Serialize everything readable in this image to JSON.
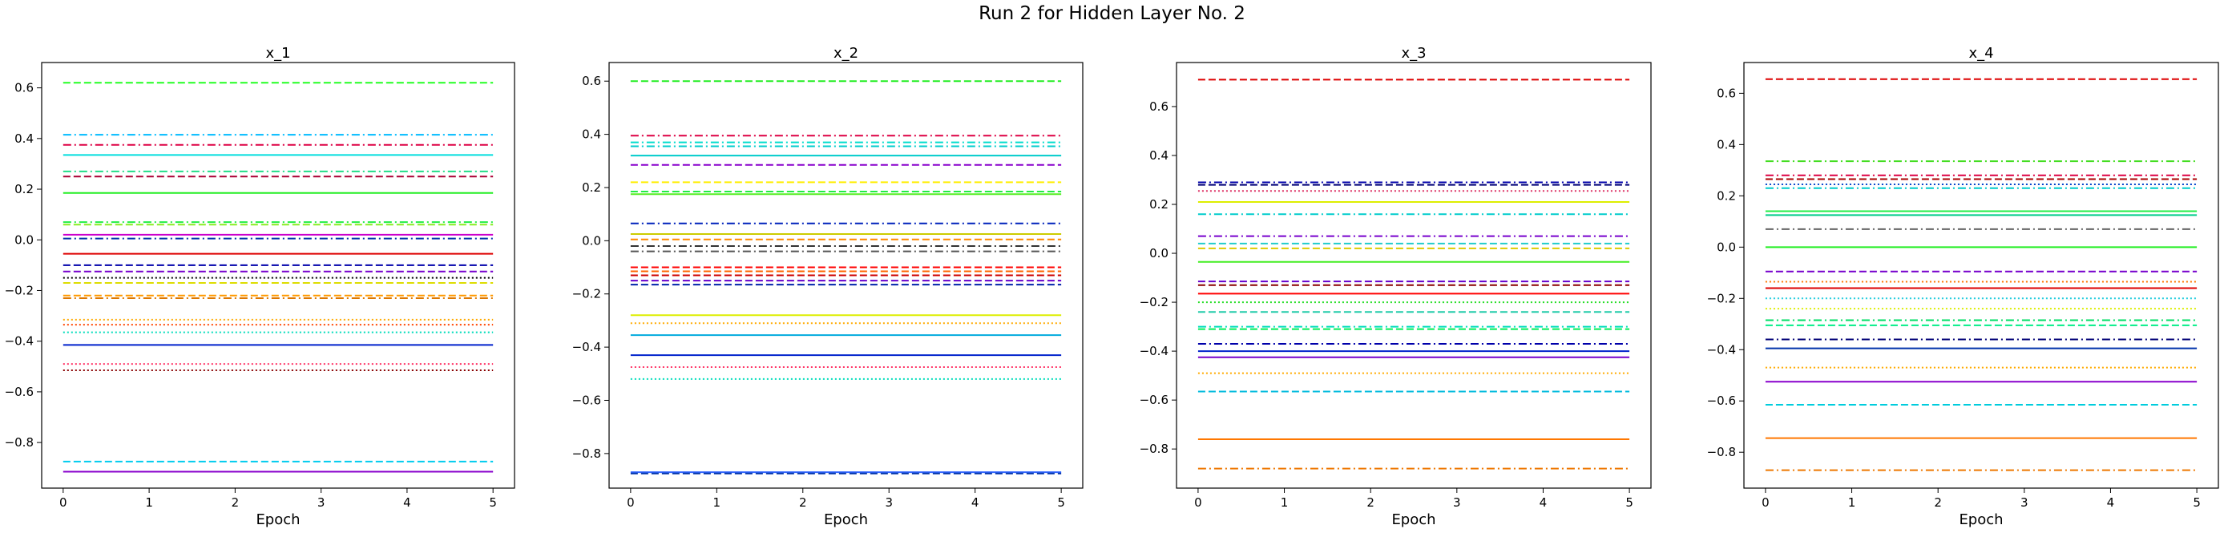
{
  "figure": {
    "suptitle": "Run 2 for Hidden Layer No. 2"
  },
  "chart_data": [
    {
      "type": "line",
      "title": "x_1",
      "xlabel": "Epoch",
      "ylabel": "",
      "xlim": [
        -0.25,
        5.25
      ],
      "ylim": [
        -0.98,
        0.7
      ],
      "xticks": [
        0,
        1,
        2,
        3,
        4,
        5
      ],
      "yticks": [
        -0.8,
        -0.6,
        -0.4,
        -0.2,
        0.0,
        0.2,
        0.4,
        0.6
      ],
      "ytick_labels": [
        "−0.8",
        "−0.6",
        "−0.4",
        "−0.2",
        "0.0",
        "0.2",
        "0.4",
        "0.6"
      ],
      "x": [
        0,
        5
      ],
      "grid": false,
      "series": [
        {
          "value": 0.62,
          "color": "#22ff22",
          "style": "dashed"
        },
        {
          "value": 0.415,
          "color": "#00bbff",
          "style": "dashdot"
        },
        {
          "value": 0.375,
          "color": "#dd0044",
          "style": "dashdot"
        },
        {
          "value": 0.335,
          "color": "#00dddd",
          "style": "solid"
        },
        {
          "value": 0.27,
          "color": "#22dd88",
          "style": "dashdot"
        },
        {
          "value": 0.25,
          "color": "#aa0033",
          "style": "dashed"
        },
        {
          "value": 0.185,
          "color": "#22ee22",
          "style": "solid"
        },
        {
          "value": 0.07,
          "color": "#22ee44",
          "style": "dashdot"
        },
        {
          "value": 0.06,
          "color": "#88ee22",
          "style": "dashed"
        },
        {
          "value": 0.02,
          "color": "#cc00cc",
          "style": "solid"
        },
        {
          "value": 0.005,
          "color": "#0033aa",
          "style": "dashdot"
        },
        {
          "value": -0.055,
          "color": "#dd0000",
          "style": "solid"
        },
        {
          "value": -0.1,
          "color": "#0000aa",
          "style": "dashed"
        },
        {
          "value": -0.125,
          "color": "#7700cc",
          "style": "dashed"
        },
        {
          "value": -0.15,
          "color": "#000000",
          "style": "dotted"
        },
        {
          "value": -0.17,
          "color": "#dddd00",
          "style": "dashed"
        },
        {
          "value": -0.22,
          "color": "#ff9900",
          "style": "dashed"
        },
        {
          "value": -0.23,
          "color": "#dd7700",
          "style": "dashdot"
        },
        {
          "value": -0.315,
          "color": "#ffaa00",
          "style": "dotted"
        },
        {
          "value": -0.335,
          "color": "#ff4400",
          "style": "dotted"
        },
        {
          "value": -0.365,
          "color": "#00ddbb",
          "style": "dotted"
        },
        {
          "value": -0.415,
          "color": "#0022cc",
          "style": "solid"
        },
        {
          "value": -0.49,
          "color": "#ff3366",
          "style": "dotted"
        },
        {
          "value": -0.515,
          "color": "#880000",
          "style": "dotted"
        },
        {
          "value": -0.875,
          "color": "#00ccee",
          "style": "dashed"
        },
        {
          "value": -0.915,
          "color": "#8800cc",
          "style": "solid"
        }
      ]
    },
    {
      "type": "line",
      "title": "x_2",
      "xlabel": "Epoch",
      "ylabel": "",
      "xlim": [
        -0.25,
        5.25
      ],
      "ylim": [
        -0.93,
        0.67
      ],
      "xticks": [
        0,
        1,
        2,
        3,
        4,
        5
      ],
      "yticks": [
        -0.8,
        -0.6,
        -0.4,
        -0.2,
        0.0,
        0.2,
        0.4,
        0.6
      ],
      "ytick_labels": [
        "−0.8",
        "−0.6",
        "−0.4",
        "−0.2",
        "0.0",
        "0.2",
        "0.4",
        "0.6"
      ],
      "x": [
        0,
        5
      ],
      "grid": false,
      "series": [
        {
          "value": 0.6,
          "color": "#22ee22",
          "style": "dashed"
        },
        {
          "value": 0.395,
          "color": "#dd0044",
          "style": "dashdot"
        },
        {
          "value": 0.37,
          "color": "#00ddcc",
          "style": "dashdot"
        },
        {
          "value": 0.355,
          "color": "#00cccc",
          "style": "dashdot"
        },
        {
          "value": 0.32,
          "color": "#00cccc",
          "style": "solid"
        },
        {
          "value": 0.285,
          "color": "#8800cc",
          "style": "dashed"
        },
        {
          "value": 0.22,
          "color": "#ffee00",
          "style": "dashed"
        },
        {
          "value": 0.185,
          "color": "#22ee44",
          "style": "dashed"
        },
        {
          "value": 0.175,
          "color": "#55ee22",
          "style": "solid"
        },
        {
          "value": 0.065,
          "color": "#0022bb",
          "style": "dashdot"
        },
        {
          "value": 0.025,
          "color": "#cccc00",
          "style": "solid"
        },
        {
          "value": 0.005,
          "color": "#ff8800",
          "style": "dashed"
        },
        {
          "value": -0.02,
          "color": "#333333",
          "style": "dashdot"
        },
        {
          "value": -0.04,
          "color": "#555555",
          "style": "dashdot"
        },
        {
          "value": -0.1,
          "color": "#ff0000",
          "style": "dashed"
        },
        {
          "value": -0.115,
          "color": "#ff6600",
          "style": "dashed"
        },
        {
          "value": -0.13,
          "color": "#cc0000",
          "style": "dashed"
        },
        {
          "value": -0.15,
          "color": "#6600cc",
          "style": "dashed"
        },
        {
          "value": -0.165,
          "color": "#0022aa",
          "style": "dashed"
        },
        {
          "value": -0.28,
          "color": "#ddee00",
          "style": "solid"
        },
        {
          "value": -0.31,
          "color": "#ffaa00",
          "style": "dotted"
        },
        {
          "value": -0.355,
          "color": "#00aadd",
          "style": "solid"
        },
        {
          "value": -0.43,
          "color": "#0022cc",
          "style": "solid"
        },
        {
          "value": -0.475,
          "color": "#ff3366",
          "style": "dotted"
        },
        {
          "value": -0.52,
          "color": "#00ddbb",
          "style": "dotted"
        },
        {
          "value": -0.87,
          "color": "#3366ff",
          "style": "solid"
        },
        {
          "value": -0.875,
          "color": "#0033aa",
          "style": "dashed"
        }
      ]
    },
    {
      "type": "line",
      "title": "x_3",
      "xlabel": "Epoch",
      "ylabel": "",
      "xlim": [
        -0.25,
        5.25
      ],
      "ylim": [
        -0.96,
        0.78
      ],
      "xticks": [
        0,
        1,
        2,
        3,
        4,
        5
      ],
      "yticks": [
        -0.8,
        -0.6,
        -0.4,
        -0.2,
        0.0,
        0.2,
        0.4,
        0.6
      ],
      "ytick_labels": [
        "−0.8",
        "−0.6",
        "−0.4",
        "−0.2",
        "0.0",
        "0.2",
        "0.4",
        "0.6"
      ],
      "x": [
        0,
        5
      ],
      "grid": false,
      "series": [
        {
          "value": 0.71,
          "color": "#dd0000",
          "style": "dashed"
        },
        {
          "value": 0.29,
          "color": "#0000aa",
          "style": "dashdot"
        },
        {
          "value": 0.28,
          "color": "#000077",
          "style": "dashed"
        },
        {
          "value": 0.255,
          "color": "#dd3366",
          "style": "dotted"
        },
        {
          "value": 0.21,
          "color": "#ddee00",
          "style": "solid"
        },
        {
          "value": 0.16,
          "color": "#00cccc",
          "style": "dashdot"
        },
        {
          "value": 0.07,
          "color": "#7700cc",
          "style": "dashdot"
        },
        {
          "value": 0.04,
          "color": "#22cccc",
          "style": "dashed"
        },
        {
          "value": 0.02,
          "color": "#ddcc00",
          "style": "dashed"
        },
        {
          "value": -0.035,
          "color": "#44ee22",
          "style": "solid"
        },
        {
          "value": -0.115,
          "color": "#6600cc",
          "style": "dashed"
        },
        {
          "value": -0.13,
          "color": "#880000",
          "style": "dashed"
        },
        {
          "value": -0.165,
          "color": "#ff0000",
          "style": "solid"
        },
        {
          "value": -0.2,
          "color": "#22dd22",
          "style": "dotted"
        },
        {
          "value": -0.24,
          "color": "#22ccaa",
          "style": "dashed"
        },
        {
          "value": -0.3,
          "color": "#00ddbb",
          "style": "dashdot"
        },
        {
          "value": -0.31,
          "color": "#00ee55",
          "style": "dashed"
        },
        {
          "value": -0.37,
          "color": "#0000aa",
          "style": "dashdot"
        },
        {
          "value": -0.4,
          "color": "#0022cc",
          "style": "solid"
        },
        {
          "value": -0.425,
          "color": "#7700cc",
          "style": "solid"
        },
        {
          "value": -0.49,
          "color": "#ffaa00",
          "style": "dotted"
        },
        {
          "value": -0.565,
          "color": "#00bbdd",
          "style": "dashed"
        },
        {
          "value": -0.76,
          "color": "#ff7700",
          "style": "solid"
        },
        {
          "value": -0.88,
          "color": "#ee7700",
          "style": "dashdot"
        }
      ]
    },
    {
      "type": "line",
      "title": "x_4",
      "xlabel": "Epoch",
      "ylabel": "",
      "xlim": [
        -0.25,
        5.25
      ],
      "ylim": [
        -0.94,
        0.72
      ],
      "xticks": [
        0,
        1,
        2,
        3,
        4,
        5
      ],
      "yticks": [
        -0.8,
        -0.6,
        -0.4,
        -0.2,
        0.0,
        0.2,
        0.4,
        0.6
      ],
      "ytick_labels": [
        "−0.8",
        "−0.6",
        "−0.4",
        "−0.2",
        "0.0",
        "0.2",
        "0.4",
        "0.6"
      ],
      "x": [
        0,
        5
      ],
      "grid": false,
      "series": [
        {
          "value": 0.655,
          "color": "#dd0000",
          "style": "dashed"
        },
        {
          "value": 0.335,
          "color": "#44dd22",
          "style": "dashdot"
        },
        {
          "value": 0.28,
          "color": "#dd0044",
          "style": "dashdot"
        },
        {
          "value": 0.265,
          "color": "#aa0000",
          "style": "dashed"
        },
        {
          "value": 0.245,
          "color": "#0044cc",
          "style": "dotted"
        },
        {
          "value": 0.23,
          "color": "#00cccc",
          "style": "dashdot"
        },
        {
          "value": 0.14,
          "color": "#22ee44",
          "style": "solid"
        },
        {
          "value": 0.125,
          "color": "#00cc88",
          "style": "solid"
        },
        {
          "value": 0.07,
          "color": "#666666",
          "style": "dashdot"
        },
        {
          "value": 0.0,
          "color": "#22ee22",
          "style": "solid"
        },
        {
          "value": -0.095,
          "color": "#7700cc",
          "style": "dashed"
        },
        {
          "value": -0.135,
          "color": "#ff7700",
          "style": "dotted"
        },
        {
          "value": -0.16,
          "color": "#dd0000",
          "style": "solid"
        },
        {
          "value": -0.2,
          "color": "#22ccdd",
          "style": "dotted"
        },
        {
          "value": -0.24,
          "color": "#ddee00",
          "style": "dotted"
        },
        {
          "value": -0.285,
          "color": "#00dd66",
          "style": "dashdot"
        },
        {
          "value": -0.305,
          "color": "#00ee88",
          "style": "dashed"
        },
        {
          "value": -0.36,
          "color": "#000077",
          "style": "dashdot"
        },
        {
          "value": -0.395,
          "color": "#0033aa",
          "style": "solid"
        },
        {
          "value": -0.47,
          "color": "#ffaa00",
          "style": "dotted"
        },
        {
          "value": -0.525,
          "color": "#8800cc",
          "style": "solid"
        },
        {
          "value": -0.615,
          "color": "#00ccdd",
          "style": "dashed"
        },
        {
          "value": -0.745,
          "color": "#ff7700",
          "style": "solid"
        },
        {
          "value": -0.87,
          "color": "#ee7700",
          "style": "dashdot"
        }
      ]
    }
  ]
}
